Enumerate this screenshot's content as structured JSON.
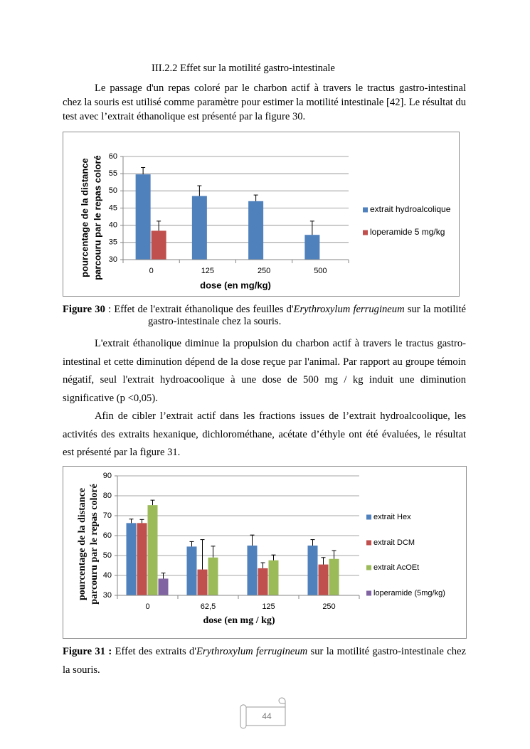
{
  "heading": "III.2.2 Effet sur la motilité gastro-intestinale",
  "paragraphs": [
    "Le passage d'un repas coloré par le charbon actif à travers le tractus gastro-intestinal chez la souris est utilisé comme paramètre pour estimer la motilité intestinale [42]. Le résultat du test avec l’extrait éthanolique est présenté par la figure 30.",
    "L'extrait éthanolique  diminue la propulsion du charbon actif à travers le tractus gastro-intestinal et cette diminution dépend de la dose reçue par l'animal. Par rapport au groupe témoin négatif, seul l'extrait hydroacoolique à une dose de 500 mg / kg induit une diminution significative (p <0,05).",
    "Afin de cibler l’extrait actif dans les fractions issues de l’extrait hydroalcoolique, les activités des extraits hexanique, dichlorométhane, acétate d’éthyle ont été évaluées, le résultat est présenté par la figure 31."
  ],
  "captions": [
    {
      "label": "Figure 30",
      "sep": ":",
      "parts": [
        "Effet de l'extrait éthanolique des feuilles d'",
        "Erythroxylum ferrugineum",
        " sur la motilité gastro-intestinale chez la souris."
      ]
    },
    {
      "label": "Figure 31 :",
      "parts": [
        "Effet des extraits d'",
        "Erythroxylum ferrugineum",
        " sur la motilité gastro-intestinale chez la souris."
      ]
    }
  ],
  "chart_data": [
    {
      "type": "bar",
      "xlabel": "dose (en mg/kg)",
      "ylabel": [
        "pourcentage de la distance",
        "parcouru par le repas coloré"
      ],
      "categories": [
        "0",
        "125",
        "250",
        "500"
      ],
      "series": [
        {
          "name": "extrait hydroalcolique",
          "color": "#4f81bd",
          "values": [
            54.8,
            48.5,
            47,
            37.2
          ],
          "errors": [
            2,
            3,
            1.8,
            4
          ]
        },
        {
          "name": "loperamide 5 mg/kg",
          "color": "#c0504d",
          "values": [
            38.4,
            null,
            null,
            null
          ],
          "errors": [
            2.8,
            null,
            null,
            null
          ]
        }
      ],
      "ylim": [
        30,
        60
      ],
      "yticks": [
        30,
        35,
        40,
        45,
        50,
        55,
        60
      ],
      "grid": true,
      "legend": "right"
    },
    {
      "type": "bar",
      "xlabel": "dose (en mg / kg)",
      "ylabel": [
        "pourcentage de la distance",
        "parcouru par le repas coloré"
      ],
      "categories": [
        "0",
        "62,5",
        "125",
        "250"
      ],
      "series": [
        {
          "name": "extrait Hex",
          "color": "#4f81bd",
          "values": [
            66.3,
            54.5,
            55,
            55
          ],
          "errors": [
            2,
            2.5,
            5.3,
            3
          ]
        },
        {
          "name": "extrait DCM",
          "color": "#c0504d",
          "values": [
            66.3,
            43,
            43.6,
            45.5
          ],
          "errors": [
            1.8,
            15,
            2.8,
            3.5
          ]
        },
        {
          "name": "extrait AcOEt",
          "color": "#9bbb59",
          "values": [
            75.3,
            49,
            47.6,
            48.3
          ],
          "errors": [
            2.5,
            5.7,
            2.7,
            4.2
          ]
        },
        {
          "name": "loperamide (5mg/kg)",
          "color": "#8064a2",
          "values": [
            38.4,
            null,
            null,
            null
          ],
          "errors": [
            2.8,
            null,
            null,
            null
          ]
        }
      ],
      "ylim": [
        30,
        90
      ],
      "yticks": [
        30,
        40,
        50,
        60,
        70,
        80,
        90
      ],
      "grid": true,
      "legend": "right"
    }
  ],
  "page_number": "44"
}
